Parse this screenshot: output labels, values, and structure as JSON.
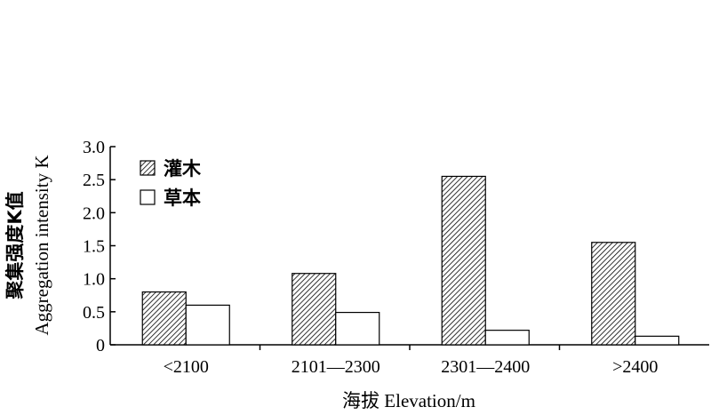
{
  "chart_data": {
    "type": "bar",
    "categories": [
      "<2100",
      "2101—2300",
      "2301—2400",
      ">2400"
    ],
    "series": [
      {
        "name": "灌木",
        "values": [
          0.8,
          1.08,
          2.55,
          1.55
        ],
        "fill": "hatched"
      },
      {
        "name": "草本",
        "values": [
          0.6,
          0.49,
          0.22,
          0.13
        ],
        "fill": "white"
      }
    ],
    "ylim": [
      0,
      3.0
    ],
    "yticks": [
      "0",
      "0.5",
      "1.0",
      "1.5",
      "2.0",
      "2.5",
      "3.0"
    ],
    "ylabel_cn": "聚集强度K值",
    "ylabel_en": "Aggregation intensity K",
    "xlabel": "海拔 Elevation/m",
    "legend_position": "top-left",
    "grid": false
  }
}
